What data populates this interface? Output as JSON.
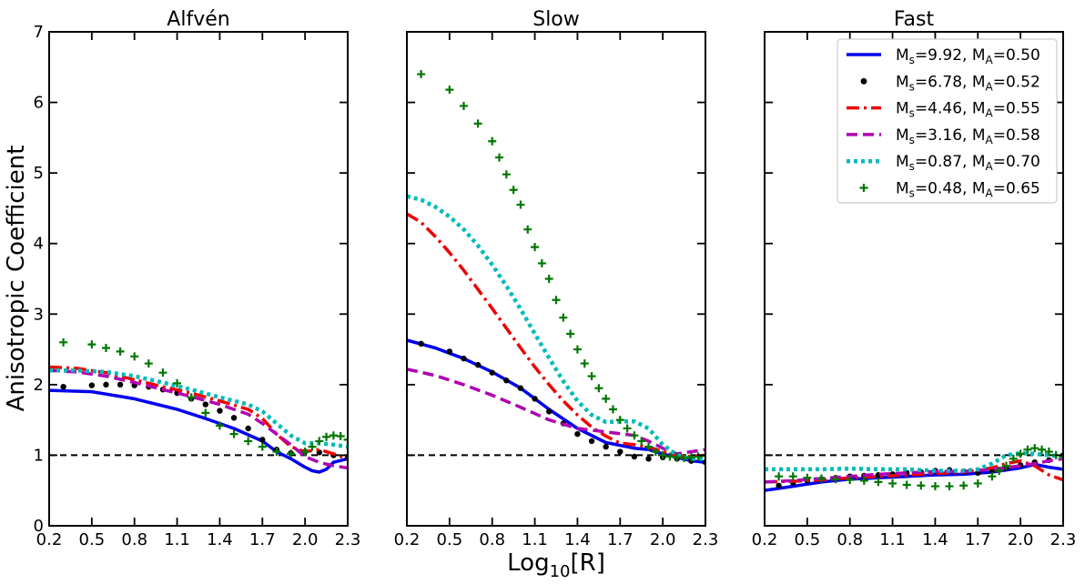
{
  "figure": {
    "ylabel": "Anisotropic Coefficient",
    "xlabel_main": "Log",
    "xlabel_sub": "10",
    "xlabel_tail": "[R]"
  },
  "chart_data": {
    "type": "line",
    "xlim": [
      0.2,
      2.3
    ],
    "ylim": [
      0,
      7
    ],
    "xticks": [
      "0.2",
      "0.5",
      "0.8",
      "1.1",
      "1.4",
      "1.7",
      "2.0",
      "2.3"
    ],
    "yticks": [
      "0",
      "1",
      "2",
      "3",
      "4",
      "5",
      "6",
      "7"
    ],
    "reference_line": {
      "y": 1,
      "style": "dashed",
      "color": "#000000"
    },
    "legend": {
      "panel": "Fast",
      "placement": "top-right",
      "entries": [
        {
          "M_s": "9.92",
          "M_A": "0.50"
        },
        {
          "M_s": "6.78",
          "M_A": "0.52"
        },
        {
          "M_s": "4.46",
          "M_A": "0.55"
        },
        {
          "M_s": "3.16",
          "M_A": "0.58"
        },
        {
          "M_s": "0.87",
          "M_A": "0.70"
        },
        {
          "M_s": "0.48",
          "M_A": "0.65"
        }
      ]
    },
    "series_styles": [
      {
        "color": "#0000ee",
        "style": "solid"
      },
      {
        "color": "#000000",
        "style": "dots"
      },
      {
        "color": "#ee0000",
        "style": "dashdot"
      },
      {
        "color": "#b000b0",
        "style": "dashed"
      },
      {
        "color": "#00bbbb",
        "style": "dotted"
      },
      {
        "color": "#007700",
        "style": "plus"
      }
    ],
    "panels": [
      {
        "title": "Alfvén",
        "series": [
          {
            "x": [
              0.2,
              0.5,
              0.8,
              1.1,
              1.3,
              1.5,
              1.7,
              1.8,
              1.9,
              2.0,
              2.05,
              2.1,
              2.15,
              2.2,
              2.3
            ],
            "y": [
              1.92,
              1.9,
              1.8,
              1.65,
              1.52,
              1.38,
              1.2,
              1.05,
              0.95,
              0.83,
              0.78,
              0.76,
              0.8,
              0.9,
              0.95
            ]
          },
          {
            "x": [
              0.3,
              0.5,
              0.6,
              0.7,
              0.8,
              0.9,
              1.0,
              1.1,
              1.2,
              1.3,
              1.4,
              1.5,
              1.6,
              1.7,
              1.8,
              1.9,
              2.0,
              2.1,
              2.2,
              2.3
            ],
            "y": [
              1.97,
              1.99,
              2.0,
              2.0,
              1.99,
              1.97,
              1.93,
              1.88,
              1.8,
              1.72,
              1.63,
              1.53,
              1.38,
              1.22,
              1.08,
              1.03,
              1.05,
              1.04,
              1.0,
              0.96
            ]
          },
          {
            "x": [
              0.2,
              0.4,
              0.6,
              0.8,
              1.0,
              1.2,
              1.4,
              1.6,
              1.7,
              1.8,
              1.9,
              2.0,
              2.1,
              2.2,
              2.3
            ],
            "y": [
              2.25,
              2.23,
              2.17,
              2.07,
              1.97,
              1.88,
              1.77,
              1.65,
              1.52,
              1.3,
              1.12,
              1.05,
              1.08,
              1.02,
              0.95
            ]
          },
          {
            "x": [
              0.2,
              0.4,
              0.6,
              0.8,
              1.0,
              1.2,
              1.4,
              1.6,
              1.7,
              1.8,
              1.9,
              2.0,
              2.1,
              2.2,
              2.3
            ],
            "y": [
              2.2,
              2.18,
              2.12,
              2.03,
              1.93,
              1.83,
              1.72,
              1.58,
              1.45,
              1.3,
              1.15,
              0.98,
              0.9,
              0.85,
              0.82
            ]
          },
          {
            "x": [
              0.2,
              0.4,
              0.6,
              0.8,
              1.0,
              1.2,
              1.4,
              1.6,
              1.7,
              1.8,
              1.9,
              2.0,
              2.1,
              2.2,
              2.3
            ],
            "y": [
              2.2,
              2.2,
              2.18,
              2.12,
              2.03,
              1.93,
              1.82,
              1.72,
              1.62,
              1.45,
              1.28,
              1.17,
              1.17,
              1.15,
              1.12
            ]
          },
          {
            "x": [
              0.3,
              0.5,
              0.6,
              0.7,
              0.8,
              0.9,
              1.0,
              1.1,
              1.2,
              1.3,
              1.4,
              1.5,
              1.6,
              1.7,
              1.8,
              1.9,
              2.0,
              2.05,
              2.1,
              2.15,
              2.2,
              2.25,
              2.3
            ],
            "y": [
              2.6,
              2.57,
              2.52,
              2.47,
              2.4,
              2.3,
              2.17,
              2.02,
              1.82,
              1.6,
              1.42,
              1.3,
              1.2,
              1.12,
              1.05,
              1.02,
              1.05,
              1.12,
              1.2,
              1.26,
              1.28,
              1.27,
              1.22
            ]
          }
        ]
      },
      {
        "title": "Slow",
        "series": [
          {
            "x": [
              0.2,
              0.4,
              0.6,
              0.8,
              1.0,
              1.2,
              1.4,
              1.6,
              1.8,
              1.9,
              2.0,
              2.1,
              2.2,
              2.3
            ],
            "y": [
              2.63,
              2.52,
              2.37,
              2.18,
              1.95,
              1.65,
              1.38,
              1.18,
              1.1,
              1.08,
              1.02,
              0.97,
              0.92,
              0.9
            ]
          },
          {
            "x": [
              0.3,
              0.5,
              0.6,
              0.7,
              0.8,
              0.9,
              1.0,
              1.1,
              1.2,
              1.3,
              1.4,
              1.5,
              1.6,
              1.7,
              1.8,
              1.9,
              2.0,
              2.1,
              2.2,
              2.3
            ],
            "y": [
              2.58,
              2.47,
              2.37,
              2.28,
              2.17,
              2.06,
              1.95,
              1.8,
              1.62,
              1.45,
              1.3,
              1.2,
              1.12,
              1.05,
              0.98,
              0.95,
              0.97,
              0.95,
              0.92,
              0.9
            ]
          },
          {
            "x": [
              0.2,
              0.3,
              0.4,
              0.5,
              0.6,
              0.7,
              0.8,
              0.9,
              1.0,
              1.1,
              1.2,
              1.3,
              1.4,
              1.5,
              1.6,
              1.7,
              1.8,
              1.9,
              2.0,
              2.1,
              2.2,
              2.3
            ],
            "y": [
              4.42,
              4.3,
              4.1,
              3.87,
              3.62,
              3.35,
              3.08,
              2.8,
              2.52,
              2.25,
              2.0,
              1.77,
              1.57,
              1.4,
              1.27,
              1.17,
              1.15,
              1.12,
              1.05,
              1.0,
              0.98,
              1.0
            ]
          },
          {
            "x": [
              0.2,
              0.4,
              0.6,
              0.8,
              1.0,
              1.2,
              1.4,
              1.6,
              1.8,
              1.9,
              2.0,
              2.1,
              2.2,
              2.3
            ],
            "y": [
              2.22,
              2.13,
              2.0,
              1.85,
              1.68,
              1.5,
              1.38,
              1.33,
              1.28,
              1.2,
              1.1,
              1.02,
              1.05,
              1.08
            ]
          },
          {
            "x": [
              0.2,
              0.3,
              0.4,
              0.5,
              0.6,
              0.7,
              0.8,
              0.9,
              1.0,
              1.1,
              1.2,
              1.3,
              1.4,
              1.5,
              1.6,
              1.7,
              1.8,
              1.9,
              2.0,
              2.1,
              2.2,
              2.3
            ],
            "y": [
              4.67,
              4.62,
              4.52,
              4.38,
              4.2,
              3.97,
              3.7,
              3.4,
              3.07,
              2.72,
              2.38,
              2.05,
              1.77,
              1.57,
              1.47,
              1.48,
              1.48,
              1.38,
              1.15,
              1.0,
              0.95,
              0.95
            ]
          },
          {
            "x": [
              0.3,
              0.5,
              0.6,
              0.7,
              0.8,
              0.85,
              0.9,
              0.95,
              1.0,
              1.05,
              1.1,
              1.15,
              1.2,
              1.25,
              1.3,
              1.35,
              1.4,
              1.45,
              1.5,
              1.55,
              1.6,
              1.65,
              1.7,
              1.75,
              1.8,
              1.85,
              1.9,
              1.95,
              2.0,
              2.05,
              2.1,
              2.15,
              2.2,
              2.25,
              2.3
            ],
            "y": [
              6.4,
              6.18,
              5.95,
              5.7,
              5.45,
              5.22,
              4.98,
              4.76,
              4.55,
              4.2,
              3.95,
              3.72,
              3.5,
              3.2,
              2.95,
              2.72,
              2.5,
              2.3,
              2.12,
              1.95,
              1.8,
              1.65,
              1.5,
              1.38,
              1.28,
              1.2,
              1.12,
              1.05,
              1.0,
              0.98,
              0.97,
              0.96,
              0.97,
              0.98,
              1.0
            ]
          }
        ]
      },
      {
        "title": "Fast",
        "series": [
          {
            "x": [
              0.2,
              0.4,
              0.6,
              0.8,
              1.0,
              1.2,
              1.4,
              1.6,
              1.8,
              2.0,
              2.1,
              2.2,
              2.3
            ],
            "y": [
              0.5,
              0.56,
              0.62,
              0.66,
              0.68,
              0.7,
              0.72,
              0.73,
              0.76,
              0.82,
              0.87,
              0.83,
              0.8
            ]
          },
          {
            "x": [
              0.3,
              0.4,
              0.5,
              0.6,
              0.7,
              0.8,
              0.9,
              1.0,
              1.1,
              1.2,
              1.3,
              1.4,
              1.5,
              1.6,
              1.7,
              1.8,
              1.9,
              2.0,
              2.1,
              2.2,
              2.3
            ],
            "y": [
              0.57,
              0.61,
              0.64,
              0.66,
              0.68,
              0.7,
              0.71,
              0.72,
              0.73,
              0.75,
              0.76,
              0.78,
              0.79,
              0.77,
              0.75,
              0.78,
              0.82,
              0.86,
              0.9,
              0.93,
              1.0
            ]
          },
          {
            "x": [
              0.2,
              0.4,
              0.6,
              0.8,
              1.0,
              1.2,
              1.4,
              1.6,
              1.8,
              1.9,
              2.0,
              2.1,
              2.2,
              2.3
            ],
            "y": [
              0.62,
              0.63,
              0.65,
              0.68,
              0.7,
              0.72,
              0.74,
              0.76,
              0.82,
              0.88,
              0.92,
              0.85,
              0.72,
              0.65
            ]
          },
          {
            "x": [
              0.2,
              0.4,
              0.6,
              0.8,
              1.0,
              1.2,
              1.4,
              1.6,
              1.8,
              2.0,
              2.1,
              2.2,
              2.3
            ],
            "y": [
              0.62,
              0.64,
              0.67,
              0.7,
              0.73,
              0.75,
              0.77,
              0.77,
              0.8,
              0.85,
              0.88,
              0.92,
              0.95
            ]
          },
          {
            "x": [
              0.2,
              0.4,
              0.6,
              0.8,
              1.0,
              1.2,
              1.4,
              1.6,
              1.7,
              1.8,
              1.9,
              2.0,
              2.1,
              2.2,
              2.3
            ],
            "y": [
              0.8,
              0.8,
              0.8,
              0.81,
              0.8,
              0.8,
              0.78,
              0.78,
              0.8,
              0.88,
              1.0,
              1.03,
              1.02,
              1.0,
              0.98
            ]
          },
          {
            "x": [
              0.3,
              0.4,
              0.5,
              0.6,
              0.7,
              0.8,
              0.9,
              1.0,
              1.1,
              1.2,
              1.3,
              1.4,
              1.5,
              1.6,
              1.7,
              1.8,
              1.85,
              1.9,
              1.95,
              2.0,
              2.05,
              2.1,
              2.15,
              2.2,
              2.25,
              2.3
            ],
            "y": [
              0.7,
              0.7,
              0.68,
              0.67,
              0.66,
              0.65,
              0.64,
              0.62,
              0.6,
              0.58,
              0.57,
              0.56,
              0.56,
              0.57,
              0.6,
              0.7,
              0.78,
              0.85,
              0.95,
              1.02,
              1.08,
              1.1,
              1.08,
              1.05,
              1.0,
              0.98
            ]
          }
        ]
      }
    ]
  }
}
